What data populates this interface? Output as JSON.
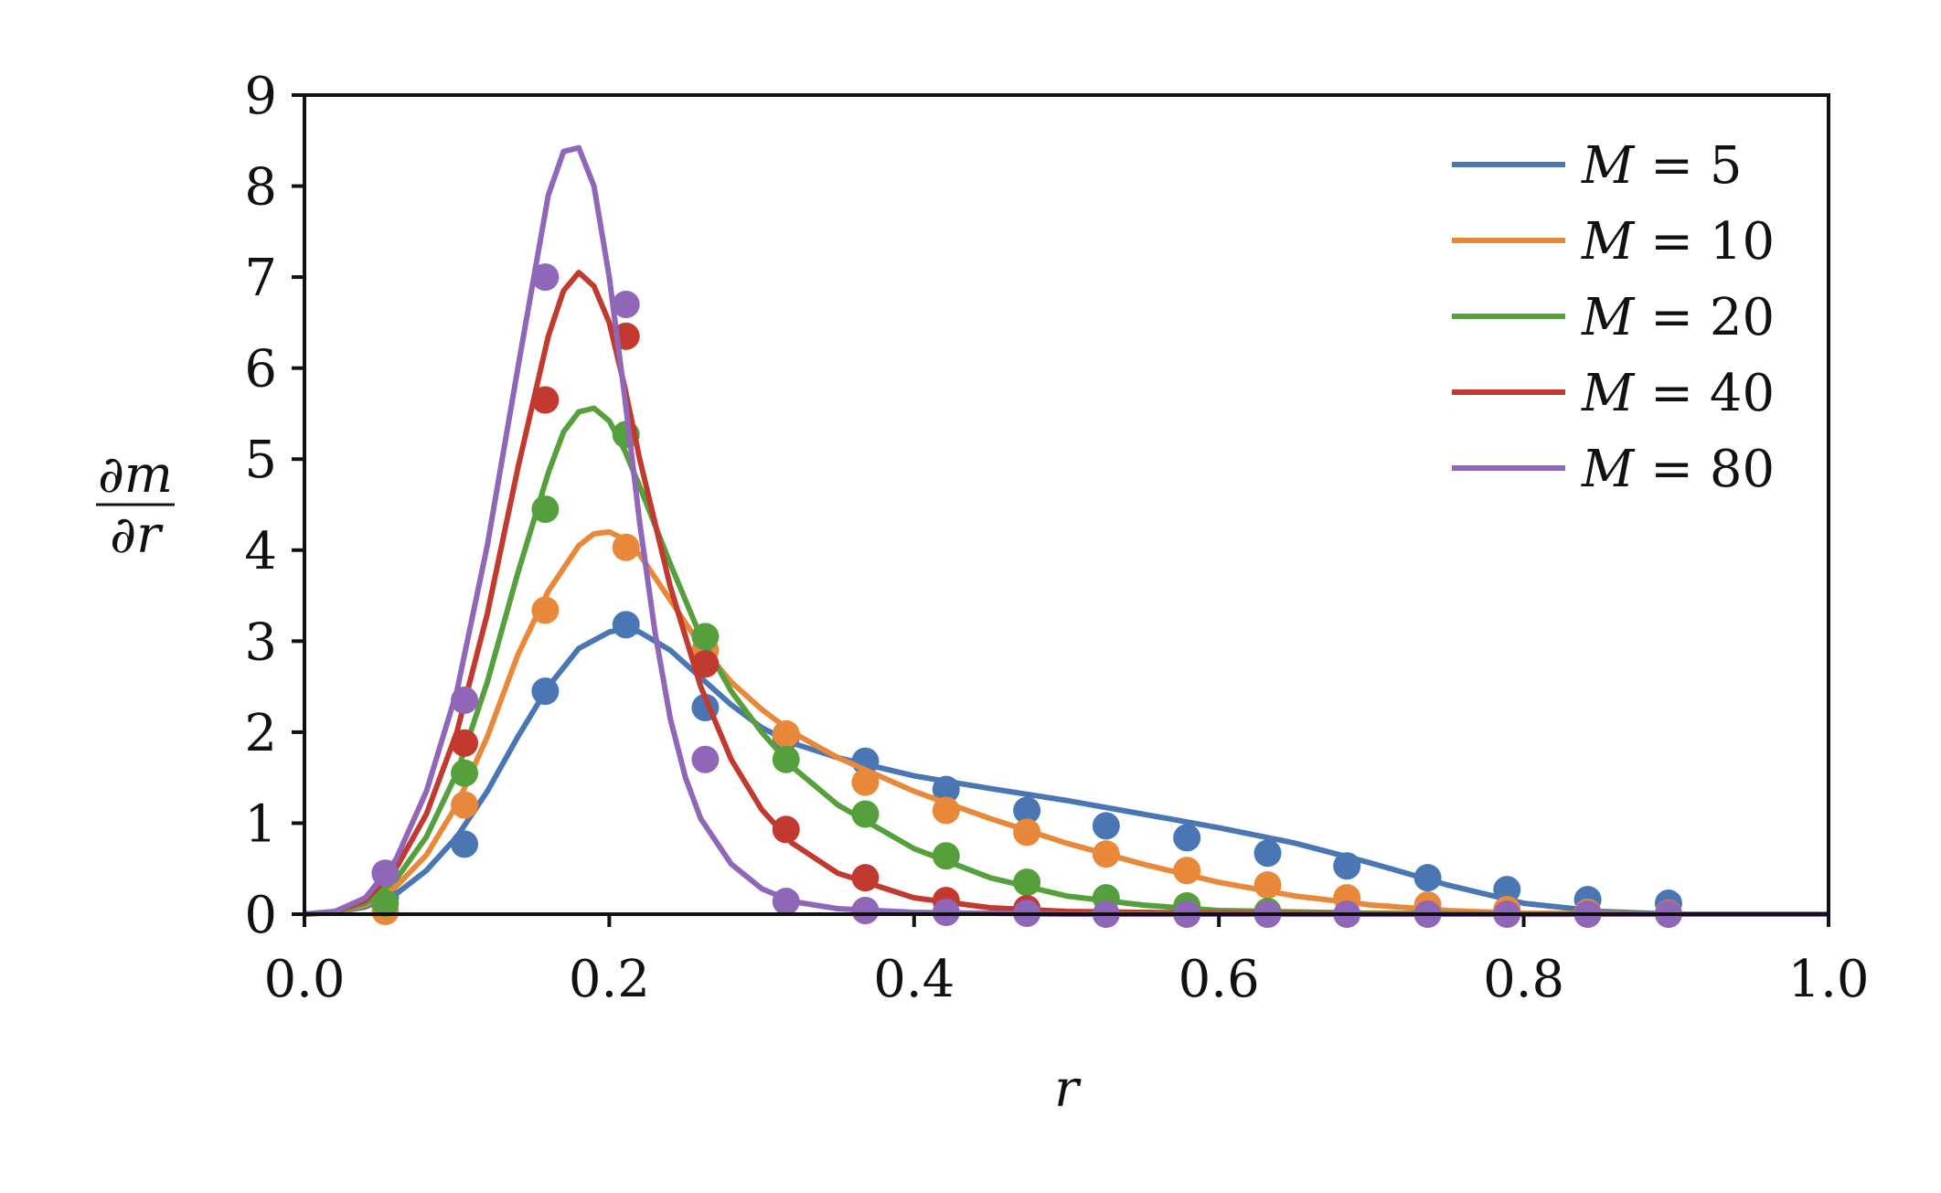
{
  "chart_data": {
    "type": "line",
    "title": "",
    "xlabel": "r",
    "ylabel": "∂m/∂r",
    "ylabel_num": "∂m",
    "ylabel_den": "∂r",
    "xlim": [
      0.0,
      1.0
    ],
    "ylim": [
      0,
      9
    ],
    "xticks": [
      0.0,
      0.2,
      0.4,
      0.6,
      0.8,
      1.0
    ],
    "xtick_labels": [
      "0.0",
      "0.2",
      "0.4",
      "0.6",
      "0.8",
      "1.0"
    ],
    "yticks": [
      0,
      1,
      2,
      3,
      4,
      5,
      6,
      7,
      8,
      9
    ],
    "ytick_labels": [
      "0",
      "1",
      "2",
      "3",
      "4",
      "5",
      "6",
      "7",
      "8",
      "9"
    ],
    "grid": false,
    "legend_position": "top-right",
    "series": [
      {
        "name": "M = 5",
        "legend_var": "M",
        "legend_value": "5",
        "color": "#4a76b4",
        "line": {
          "x": [
            0.0,
            0.02,
            0.04,
            0.06,
            0.08,
            0.1,
            0.12,
            0.14,
            0.16,
            0.18,
            0.2,
            0.21,
            0.22,
            0.24,
            0.26,
            0.28,
            0.3,
            0.32,
            0.35,
            0.4,
            0.45,
            0.5,
            0.55,
            0.6,
            0.65,
            0.7,
            0.75,
            0.8,
            0.85,
            0.9,
            1.0
          ],
          "y": [
            0.0,
            0.02,
            0.08,
            0.22,
            0.48,
            0.85,
            1.35,
            1.95,
            2.5,
            2.92,
            3.1,
            3.14,
            3.1,
            2.9,
            2.6,
            2.3,
            2.05,
            1.88,
            1.72,
            1.52,
            1.38,
            1.25,
            1.1,
            0.95,
            0.78,
            0.56,
            0.32,
            0.12,
            0.03,
            0.0,
            0.0
          ]
        },
        "points": {
          "x": [
            0.053,
            0.105,
            0.158,
            0.211,
            0.263,
            0.316,
            0.368,
            0.421,
            0.474,
            0.526,
            0.579,
            0.632,
            0.684,
            0.737,
            0.789,
            0.842,
            0.895
          ],
          "y": [
            0.18,
            0.77,
            2.45,
            3.18,
            2.27,
            1.95,
            1.68,
            1.37,
            1.14,
            0.97,
            0.84,
            0.67,
            0.53,
            0.4,
            0.27,
            0.16,
            0.12
          ]
        }
      },
      {
        "name": "M = 10",
        "legend_var": "M",
        "legend_value": "10",
        "color": "#e8883a",
        "line": {
          "x": [
            0.0,
            0.02,
            0.04,
            0.06,
            0.08,
            0.1,
            0.12,
            0.14,
            0.16,
            0.18,
            0.19,
            0.2,
            0.21,
            0.22,
            0.24,
            0.26,
            0.28,
            0.3,
            0.32,
            0.35,
            0.4,
            0.45,
            0.5,
            0.55,
            0.6,
            0.65,
            0.7,
            0.75,
            0.8,
            0.9,
            1.0
          ],
          "y": [
            0.0,
            0.02,
            0.1,
            0.3,
            0.65,
            1.2,
            1.95,
            2.85,
            3.55,
            4.05,
            4.18,
            4.2,
            4.12,
            3.95,
            3.45,
            2.95,
            2.55,
            2.25,
            2.0,
            1.72,
            1.35,
            1.05,
            0.78,
            0.55,
            0.35,
            0.2,
            0.1,
            0.04,
            0.01,
            0.0,
            0.0
          ]
        },
        "points": {
          "x": [
            0.053,
            0.105,
            0.158,
            0.211,
            0.263,
            0.316,
            0.368,
            0.421,
            0.474,
            0.526,
            0.579,
            0.632,
            0.684,
            0.737,
            0.789,
            0.842,
            0.895
          ],
          "y": [
            0.03,
            1.2,
            3.34,
            4.03,
            2.9,
            1.98,
            1.45,
            1.14,
            0.9,
            0.66,
            0.48,
            0.32,
            0.18,
            0.1,
            0.05,
            0.02,
            0.01
          ]
        }
      },
      {
        "name": "M = 20",
        "legend_var": "M",
        "legend_value": "20",
        "color": "#55a03d",
        "line": {
          "x": [
            0.0,
            0.02,
            0.04,
            0.06,
            0.08,
            0.1,
            0.12,
            0.14,
            0.16,
            0.17,
            0.18,
            0.19,
            0.2,
            0.21,
            0.22,
            0.24,
            0.26,
            0.28,
            0.3,
            0.32,
            0.35,
            0.4,
            0.45,
            0.5,
            0.55,
            0.6,
            0.7,
            0.8,
            1.0
          ],
          "y": [
            0.0,
            0.02,
            0.12,
            0.38,
            0.85,
            1.55,
            2.55,
            3.75,
            4.85,
            5.3,
            5.52,
            5.56,
            5.42,
            5.1,
            4.7,
            3.85,
            3.05,
            2.45,
            2.0,
            1.62,
            1.2,
            0.72,
            0.4,
            0.2,
            0.1,
            0.04,
            0.01,
            0.0,
            0.0
          ]
        },
        "points": {
          "x": [
            0.053,
            0.105,
            0.158,
            0.211,
            0.263,
            0.316,
            0.368,
            0.421,
            0.474,
            0.526,
            0.579,
            0.632
          ],
          "y": [
            0.12,
            1.55,
            4.45,
            5.27,
            3.05,
            1.7,
            1.1,
            0.64,
            0.35,
            0.18,
            0.09,
            0.03
          ]
        }
      },
      {
        "name": "M = 40",
        "legend_var": "M",
        "legend_value": "40",
        "color": "#c23a2f",
        "line": {
          "x": [
            0.0,
            0.02,
            0.04,
            0.06,
            0.08,
            0.1,
            0.12,
            0.14,
            0.16,
            0.17,
            0.18,
            0.19,
            0.2,
            0.21,
            0.22,
            0.24,
            0.26,
            0.28,
            0.3,
            0.32,
            0.35,
            0.4,
            0.45,
            0.5,
            0.6,
            0.8,
            1.0
          ],
          "y": [
            0.0,
            0.03,
            0.15,
            0.5,
            1.1,
            2.0,
            3.3,
            4.9,
            6.35,
            6.85,
            7.05,
            6.9,
            6.5,
            5.8,
            5.0,
            3.6,
            2.5,
            1.7,
            1.15,
            0.78,
            0.45,
            0.18,
            0.07,
            0.03,
            0.01,
            0.0,
            0.0
          ]
        },
        "points": {
          "x": [
            0.105,
            0.158,
            0.211,
            0.263,
            0.316,
            0.368,
            0.421,
            0.474
          ],
          "y": [
            1.88,
            5.65,
            6.35,
            2.75,
            0.93,
            0.4,
            0.15,
            0.06
          ]
        }
      },
      {
        "name": "M = 80",
        "legend_var": "M",
        "legend_value": "80",
        "color": "#9066b8",
        "line": {
          "x": [
            0.0,
            0.02,
            0.04,
            0.06,
            0.08,
            0.1,
            0.12,
            0.14,
            0.16,
            0.17,
            0.18,
            0.19,
            0.2,
            0.21,
            0.22,
            0.23,
            0.24,
            0.25,
            0.26,
            0.28,
            0.3,
            0.32,
            0.35,
            0.4,
            0.5,
            0.7,
            1.0
          ],
          "y": [
            0.0,
            0.03,
            0.18,
            0.6,
            1.35,
            2.45,
            4.05,
            6.0,
            7.9,
            8.38,
            8.42,
            8.0,
            7.0,
            5.7,
            4.3,
            3.1,
            2.15,
            1.5,
            1.05,
            0.55,
            0.28,
            0.14,
            0.06,
            0.02,
            0.0,
            0.0,
            0.0
          ]
        },
        "points": {
          "x": [
            0.053,
            0.105,
            0.158,
            0.211,
            0.263,
            0.316,
            0.368,
            0.421,
            0.474,
            0.526,
            0.579,
            0.632,
            0.684,
            0.737,
            0.789,
            0.842,
            0.895
          ],
          "y": [
            0.45,
            2.35,
            7.0,
            6.7,
            1.7,
            0.14,
            0.04,
            0.02,
            0.01,
            0.0,
            0.0,
            0.0,
            0.0,
            0.0,
            0.0,
            0.0,
            0.0
          ]
        }
      }
    ]
  }
}
